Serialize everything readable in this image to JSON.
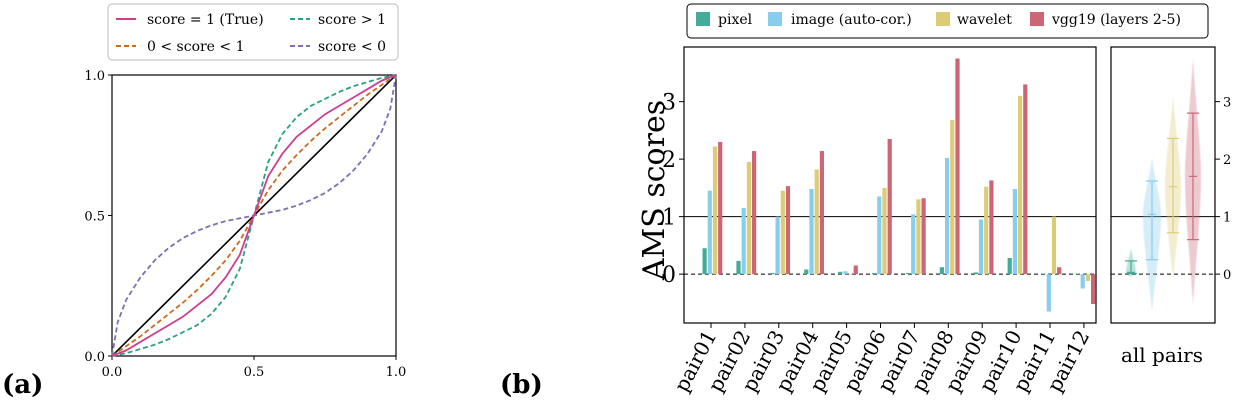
{
  "panel_labels": {
    "a": "(a)",
    "b": "(b)"
  },
  "colors": {
    "true": "#cc3e8e",
    "mid": "#cc6a1c",
    "gt1": "#2aa07f",
    "lt0": "#7f6eb0",
    "identity": "#000000",
    "pixel": "#44ab99",
    "image": "#88ccee",
    "wavelet": "#ddcc77",
    "vgg": "#cc6677"
  },
  "chart_data": [
    {
      "type": "line",
      "panel": "(a)",
      "title": "",
      "xlabel": "",
      "ylabel": "",
      "xlim": [
        0,
        1
      ],
      "ylim": [
        0,
        1
      ],
      "xticks": [
        "0.0",
        "0.5",
        "1.0"
      ],
      "yticks": [
        "0.0",
        "0.5",
        "1.0"
      ],
      "legend": {
        "placement": "top",
        "entries": [
          "score = 1 (True)",
          "score > 1",
          "0 < score < 1",
          "score < 0"
        ]
      },
      "identity_line": {
        "x": [
          0,
          1
        ],
        "y": [
          0,
          1
        ]
      },
      "series": [
        {
          "name": "score = 1 (True)",
          "style": "solid",
          "color_key": "true",
          "x": [
            0,
            0.05,
            0.1,
            0.15,
            0.2,
            0.25,
            0.3,
            0.35,
            0.4,
            0.45,
            0.5,
            0.55,
            0.6,
            0.65,
            0.7,
            0.75,
            0.8,
            0.85,
            0.9,
            0.95,
            1
          ],
          "y": [
            0,
            0.02,
            0.05,
            0.08,
            0.11,
            0.14,
            0.18,
            0.22,
            0.28,
            0.36,
            0.5,
            0.64,
            0.72,
            0.78,
            0.82,
            0.86,
            0.89,
            0.92,
            0.95,
            0.98,
            1
          ]
        },
        {
          "name": "score > 1",
          "style": "dashed",
          "color_key": "gt1",
          "x": [
            0,
            0.05,
            0.1,
            0.15,
            0.2,
            0.25,
            0.3,
            0.35,
            0.4,
            0.45,
            0.5,
            0.55,
            0.6,
            0.65,
            0.7,
            0.75,
            0.8,
            0.85,
            0.9,
            0.95,
            1
          ],
          "y": [
            0,
            0.01,
            0.025,
            0.04,
            0.06,
            0.085,
            0.11,
            0.15,
            0.21,
            0.31,
            0.5,
            0.69,
            0.79,
            0.85,
            0.89,
            0.915,
            0.94,
            0.96,
            0.975,
            0.99,
            1
          ]
        },
        {
          "name": "0 < score < 1",
          "style": "dashed",
          "color_key": "mid",
          "x": [
            0,
            0.05,
            0.1,
            0.15,
            0.2,
            0.25,
            0.3,
            0.35,
            0.4,
            0.45,
            0.5,
            0.55,
            0.6,
            0.65,
            0.7,
            0.75,
            0.8,
            0.85,
            0.9,
            0.95,
            1
          ],
          "y": [
            0,
            0.035,
            0.07,
            0.11,
            0.15,
            0.19,
            0.235,
            0.285,
            0.34,
            0.41,
            0.5,
            0.59,
            0.66,
            0.715,
            0.765,
            0.81,
            0.85,
            0.89,
            0.93,
            0.965,
            1
          ]
        },
        {
          "name": "score < 0",
          "style": "dashed",
          "color_key": "lt0",
          "x": [
            0,
            0.02,
            0.05,
            0.1,
            0.15,
            0.2,
            0.25,
            0.3,
            0.35,
            0.4,
            0.45,
            0.5,
            0.55,
            0.6,
            0.65,
            0.7,
            0.75,
            0.8,
            0.85,
            0.9,
            0.95,
            0.98,
            1
          ],
          "y": [
            0,
            0.12,
            0.2,
            0.28,
            0.34,
            0.385,
            0.42,
            0.445,
            0.465,
            0.48,
            0.49,
            0.5,
            0.51,
            0.52,
            0.535,
            0.555,
            0.58,
            0.615,
            0.66,
            0.72,
            0.8,
            0.88,
            1
          ]
        }
      ]
    },
    {
      "type": "bar",
      "panel": "(b)",
      "title": "",
      "xlabel": "",
      "ylabel": "AMS scores",
      "ylim": [
        -0.85,
        3.95
      ],
      "yticks": [
        0,
        1,
        2,
        3
      ],
      "reference_lines": [
        {
          "y": 1,
          "style": "solid"
        },
        {
          "y": 0,
          "style": "dashed"
        }
      ],
      "legend": {
        "placement": "top",
        "entries": [
          "pixel",
          "image (auto-cor.)",
          "wavelet",
          "vgg19 (layers 2-5)"
        ]
      },
      "categories": [
        "pair01",
        "pair02",
        "pair03",
        "pair04",
        "pair05",
        "pair06",
        "pair07",
        "pair08",
        "pair09",
        "pair10",
        "pair11",
        "pair12"
      ],
      "series": [
        {
          "name": "pixel",
          "color_key": "pixel",
          "values": [
            0.45,
            0.23,
            0.02,
            0.08,
            0.04,
            0.02,
            0.02,
            0.12,
            0.03,
            0.28,
            0.01,
            0.01
          ]
        },
        {
          "name": "image (auto-cor.)",
          "color_key": "image",
          "values": [
            1.45,
            1.15,
            1.0,
            1.48,
            0.05,
            1.35,
            1.04,
            2.02,
            0.95,
            1.48,
            -0.65,
            -0.25
          ]
        },
        {
          "name": "wavelet",
          "color_key": "wavelet",
          "values": [
            2.22,
            1.95,
            1.45,
            1.82,
            0.0,
            1.5,
            1.3,
            2.68,
            1.52,
            3.1,
            1.0,
            -0.12
          ]
        },
        {
          "name": "vgg19 (layers 2-5)",
          "color_key": "vgg",
          "values": [
            2.3,
            2.14,
            1.53,
            2.14,
            0.15,
            2.35,
            1.32,
            3.75,
            1.63,
            3.3,
            0.12,
            -0.52
          ]
        }
      ]
    },
    {
      "type": "violin",
      "panel": "(b) right",
      "xlabel": "all pairs",
      "ylim": [
        -0.85,
        3.95
      ],
      "yticks": [
        0,
        1,
        2,
        3
      ],
      "reference_lines": [
        {
          "y": 1,
          "style": "solid"
        },
        {
          "y": 0,
          "style": "dashed"
        }
      ],
      "series": [
        {
          "name": "pixel",
          "color_key": "pixel",
          "min": 0.01,
          "max": 0.23,
          "median": 0.03,
          "p_low": 0.01,
          "p_high": 0.23,
          "extent": [
            -0.05,
            0.45
          ]
        },
        {
          "name": "image (auto-cor.)",
          "color_key": "image",
          "min": 0.25,
          "max": 1.62,
          "median": 1.04,
          "p_low": 0.25,
          "p_high": 1.62,
          "extent": [
            -0.65,
            2.02
          ]
        },
        {
          "name": "wavelet",
          "color_key": "wavelet",
          "min": 0.72,
          "max": 2.36,
          "median": 1.52,
          "p_low": 0.72,
          "p_high": 2.36,
          "extent": [
            -0.12,
            3.1
          ]
        },
        {
          "name": "vgg19 (layers 2-5)",
          "color_key": "vgg",
          "min": 0.6,
          "max": 2.8,
          "median": 1.7,
          "p_low": 0.6,
          "p_high": 2.8,
          "extent": [
            -0.52,
            3.75
          ]
        }
      ]
    }
  ]
}
